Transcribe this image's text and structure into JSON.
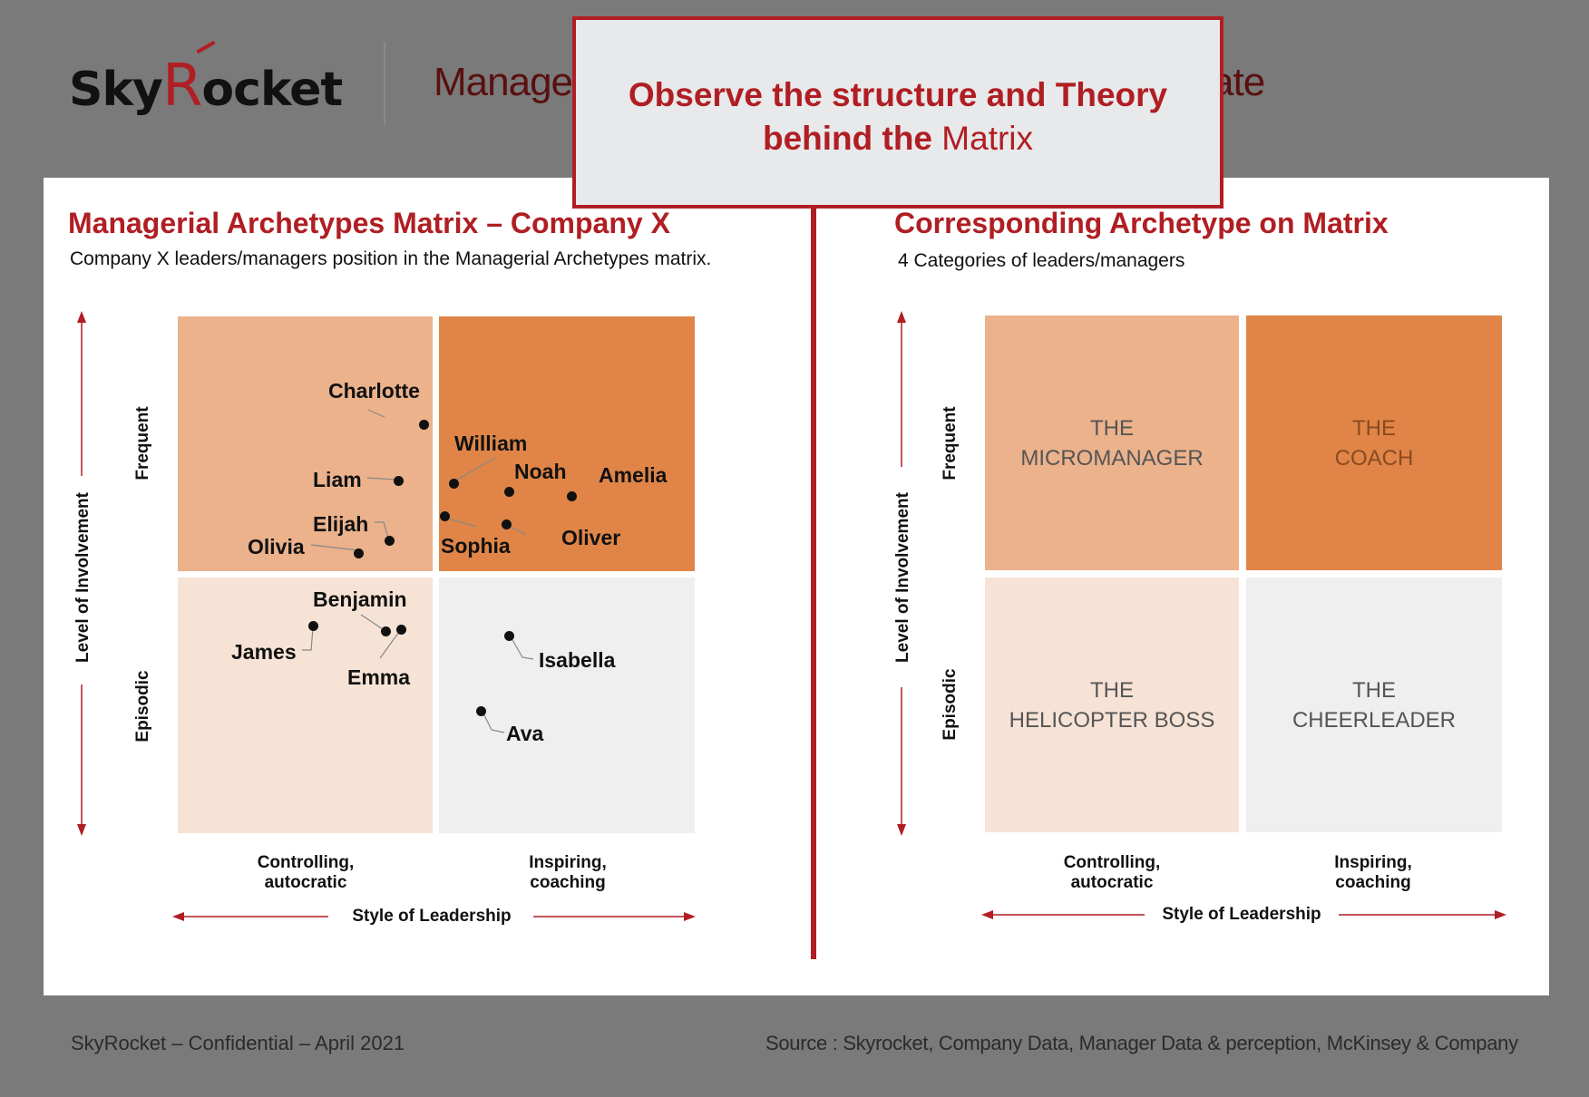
{
  "header": {
    "logo": "SkyRocket",
    "title_visible_start": "Manage",
    "title_visible_end": "ate"
  },
  "callout": {
    "line1": "Observe the structure and Theory",
    "line2_bold": "behind the",
    "line2_normal": "Matrix"
  },
  "left": {
    "title": "Managerial Archetypes Matrix – Company X",
    "subtitle": "Company X leaders/managers position in the Managerial Archetypes matrix.",
    "y_axis_label": "Level of Involvement",
    "y_high": "Frequent",
    "y_low": "Episodic",
    "x_axis_label": "Style of Leadership",
    "x_left_line1": "Controlling,",
    "x_left_line2": "autocratic",
    "x_right_line1": "Inspiring,",
    "x_right_line2": "coaching",
    "people": [
      {
        "name": "Charlotte"
      },
      {
        "name": "Liam"
      },
      {
        "name": "Elijah"
      },
      {
        "name": "Olivia"
      },
      {
        "name": "William"
      },
      {
        "name": "Noah"
      },
      {
        "name": "Amelia"
      },
      {
        "name": "Sophia"
      },
      {
        "name": "Oliver"
      },
      {
        "name": "Benjamin"
      },
      {
        "name": "James"
      },
      {
        "name": "Emma"
      },
      {
        "name": "Isabella"
      },
      {
        "name": "Ava"
      }
    ]
  },
  "right": {
    "title": "Corresponding Archetype on Matrix",
    "subtitle": "4 Categories of leaders/managers",
    "y_axis_label": "Level of Involvement",
    "y_high": "Frequent",
    "y_low": "Episodic",
    "x_axis_label": "Style of Leadership",
    "x_left_line1": "Controlling,",
    "x_left_line2": "autocratic",
    "x_right_line1": "Inspiring,",
    "x_right_line2": "coaching",
    "quadrants": {
      "top_left": {
        "line1": "THE",
        "line2": "MICROMANAGER"
      },
      "top_right": {
        "line1": "THE",
        "line2": "COACH"
      },
      "bottom_left": {
        "line1": "THE",
        "line2": "HELICOPTER BOSS"
      },
      "bottom_right": {
        "line1": "THE",
        "line2": "CHEERLEADER"
      }
    }
  },
  "footer": {
    "left": "SkyRocket – Confidential – April 2021",
    "right": "Source : Skyrocket, Company Data, Manager Data & perception, McKinsey & Company"
  },
  "colors": {
    "accent": "#b01e23",
    "q_top_left": "#ebb28c",
    "q_top_right": "#e08547",
    "q_bottom_left": "#f7e3d6",
    "q_bottom_right": "#efefef"
  }
}
